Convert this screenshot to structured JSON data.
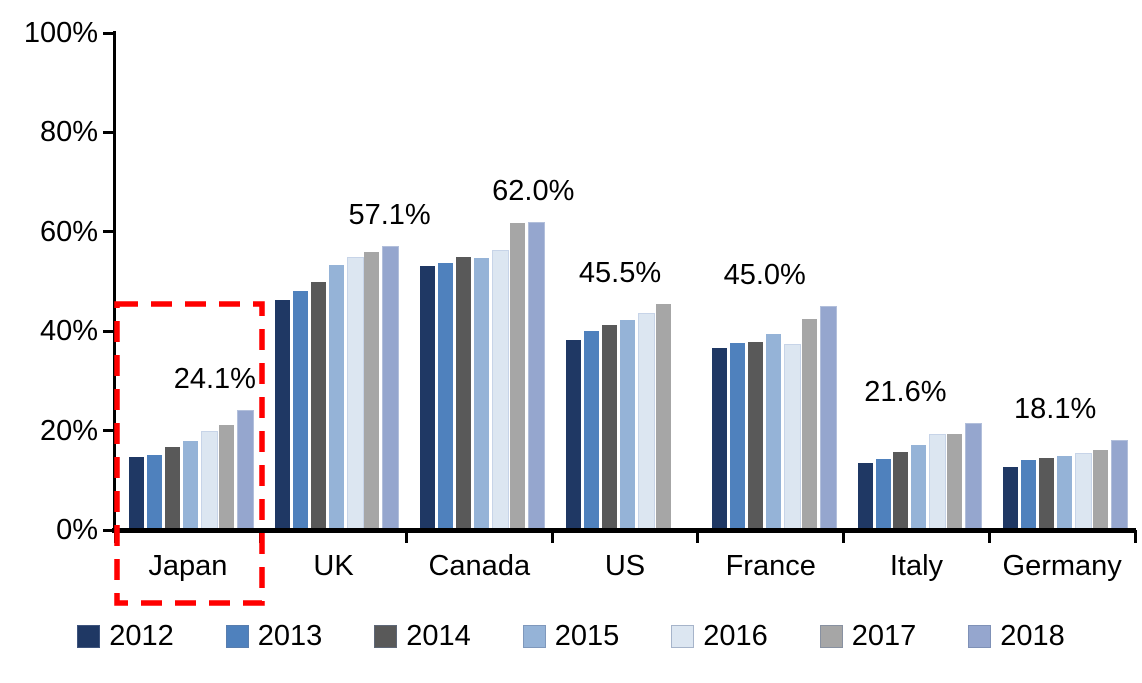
{
  "chart_data": {
    "type": "bar",
    "title": "",
    "xlabel": "",
    "ylabel": "",
    "categories": [
      "Japan",
      "UK",
      "Canada",
      "US",
      "France",
      "Italy",
      "Germany"
    ],
    "series": [
      {
        "name": "2012",
        "color": "#1F3864",
        "values": [
          14.7,
          46.3,
          53.1,
          38.2,
          36.6,
          13.5,
          12.6
        ]
      },
      {
        "name": "2013",
        "color": "#4F81BD",
        "values": [
          15.1,
          48.0,
          53.7,
          40.0,
          37.7,
          14.2,
          14.1
        ]
      },
      {
        "name": "2014",
        "color": "#595959",
        "values": [
          16.8,
          50.0,
          55.0,
          41.2,
          37.8,
          15.6,
          14.5
        ]
      },
      {
        "name": "2015",
        "color": "#95B3D7",
        "values": [
          18.0,
          53.3,
          54.7,
          42.3,
          39.4,
          17.2,
          14.8
        ]
      },
      {
        "name": "2016",
        "color": "#DCE6F1",
        "values": [
          20.0,
          54.9,
          56.3,
          43.7,
          37.4,
          19.3,
          15.4
        ]
      },
      {
        "name": "2017",
        "color": "#A6A6A6",
        "values": [
          21.1,
          56.0,
          61.7,
          45.5,
          42.4,
          19.4,
          16.1
        ]
      },
      {
        "name": "2018",
        "color": "#95A6CE",
        "values": [
          24.1,
          57.1,
          62.0,
          null,
          45.0,
          21.6,
          18.1
        ]
      }
    ],
    "data_labels": [
      "24.1%",
      "57.1%",
      "62.0%",
      "45.5%",
      "45.0%",
      "21.6%",
      "18.1%"
    ],
    "y_axis": {
      "min": 0,
      "max": 100,
      "tick_step": 20,
      "tick_labels": [
        "0%",
        "20%",
        "40%",
        "60%",
        "80%",
        "100%"
      ]
    },
    "grid": "off",
    "legend": {
      "position": "bottom",
      "entries": [
        "2012",
        "2013",
        "2014",
        "2015",
        "2016",
        "2017",
        "2018"
      ]
    },
    "highlight": {
      "shape": "dashed-rectangle",
      "color": "#FF0000",
      "category": "Japan"
    }
  }
}
